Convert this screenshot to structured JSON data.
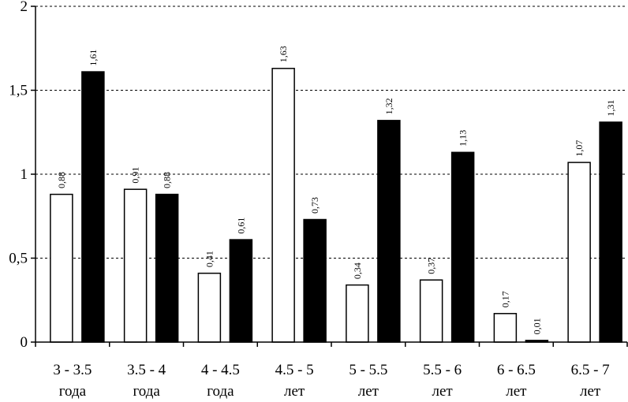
{
  "chart_data": {
    "type": "bar",
    "categories": [
      [
        "3 - 3.5",
        "года"
      ],
      [
        "3.5 - 4",
        "года"
      ],
      [
        "4 - 4.5",
        "года"
      ],
      [
        "4.5 - 5",
        "лет"
      ],
      [
        "5 - 5.5",
        "лет"
      ],
      [
        "5.5 - 6",
        "лет"
      ],
      [
        "6 - 6.5",
        "лет"
      ],
      [
        "6.5 - 7",
        "лет"
      ]
    ],
    "series": [
      {
        "values": [
          0.88,
          0.91,
          0.41,
          1.63,
          0.34,
          0.37,
          0.17,
          1.07
        ],
        "labels": [
          "0,88",
          "0,91",
          "0,41",
          "1,63",
          "0,34",
          "0,37",
          "0,17",
          "1,07"
        ],
        "color": "#ffffff"
      },
      {
        "values": [
          1.61,
          0.88,
          0.61,
          0.73,
          1.32,
          1.13,
          0.01,
          1.31
        ],
        "labels": [
          "1,61",
          "0,88",
          "0,61",
          "0,73",
          "1,32",
          "1,13",
          "0,01",
          "1,31"
        ],
        "color": "#000000"
      }
    ],
    "yticks": [
      0,
      0.5,
      1,
      1.5,
      2
    ],
    "ytick_labels": [
      "0",
      "0,5",
      "1",
      "1,5",
      "2"
    ],
    "ylim": [
      0,
      2
    ],
    "grid": true,
    "grid_style": "dashed",
    "legend": false
  }
}
